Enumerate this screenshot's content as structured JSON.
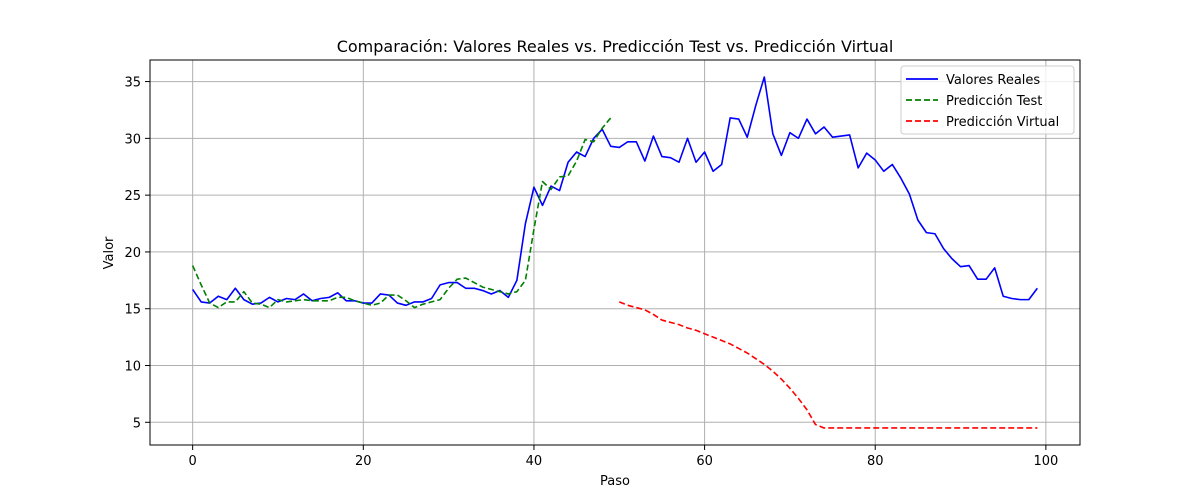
{
  "chart_data": {
    "type": "line",
    "title": "Comparación: Valores Reales vs. Predicción Test vs. Predicción Virtual",
    "xlabel": "Paso",
    "ylabel": "Valor",
    "xlim": [
      -5,
      104
    ],
    "ylim": [
      3.0,
      36.9
    ],
    "xticks": [
      0,
      20,
      40,
      60,
      80,
      100
    ],
    "yticks": [
      5,
      10,
      15,
      20,
      25,
      30,
      35
    ],
    "grid": true,
    "legend_position": "top-right",
    "series": [
      {
        "name": "Valores Reales",
        "color": "#0000ff",
        "style": "solid",
        "x_start": 0,
        "values": [
          16.7,
          15.6,
          15.5,
          16.1,
          15.8,
          16.8,
          15.8,
          15.4,
          15.5,
          16.0,
          15.6,
          15.9,
          15.8,
          16.3,
          15.7,
          15.9,
          16.0,
          16.4,
          15.7,
          15.7,
          15.5,
          15.5,
          16.3,
          16.2,
          15.5,
          15.3,
          15.6,
          15.6,
          15.9,
          17.1,
          17.3,
          17.3,
          16.8,
          16.8,
          16.6,
          16.3,
          16.6,
          16.0,
          17.5,
          22.5,
          25.7,
          24.1,
          25.8,
          25.4,
          27.9,
          28.8,
          28.4,
          30.0,
          30.8,
          29.3,
          29.2,
          29.7,
          29.7,
          28.0,
          30.2,
          28.4,
          28.3,
          27.9,
          30.0,
          27.9,
          28.8,
          27.1,
          27.7,
          31.8,
          31.7,
          30.1,
          32.9,
          35.4,
          30.4,
          28.5,
          30.5,
          30.0,
          31.7,
          30.4,
          31.0,
          30.1,
          30.2,
          30.3,
          27.4,
          28.7,
          28.1,
          27.1,
          27.7,
          26.5,
          25.1,
          22.8,
          21.7,
          21.6,
          20.3,
          19.4,
          18.7,
          18.8,
          17.6,
          17.6,
          18.6,
          16.1,
          15.9,
          15.8,
          15.8,
          16.8
        ]
      },
      {
        "name": "Predicción Test",
        "color": "#008000",
        "style": "dashed",
        "x_start": 0,
        "values": [
          18.8,
          17.1,
          15.5,
          15.1,
          15.6,
          15.6,
          16.5,
          15.5,
          15.4,
          15.1,
          15.8,
          15.6,
          15.7,
          15.8,
          15.7,
          15.7,
          15.7,
          16.0,
          16.0,
          15.7,
          15.5,
          15.3,
          15.5,
          16.2,
          16.2,
          15.7,
          15.1,
          15.4,
          15.6,
          15.8,
          16.8,
          17.6,
          17.7,
          17.3,
          16.9,
          16.7,
          16.5,
          16.3,
          16.5,
          17.5,
          22.0,
          26.2,
          25.5,
          26.6,
          26.7,
          28.0,
          29.9,
          29.7,
          30.9,
          31.8
        ]
      },
      {
        "name": "Predicción Virtual",
        "color": "#ff0000",
        "style": "dashed",
        "x_start": 50,
        "values": [
          15.6,
          15.3,
          15.1,
          14.9,
          14.5,
          14.0,
          13.8,
          13.6,
          13.3,
          13.1,
          12.8,
          12.5,
          12.2,
          11.9,
          11.5,
          11.1,
          10.6,
          10.1,
          9.5,
          8.8,
          8.0,
          7.1,
          6.1,
          4.8,
          4.5,
          4.5,
          4.5,
          4.5,
          4.5,
          4.5,
          4.5,
          4.5,
          4.5,
          4.5,
          4.5,
          4.5,
          4.5,
          4.5,
          4.5,
          4.5,
          4.5,
          4.5,
          4.5,
          4.5,
          4.5,
          4.5,
          4.5,
          4.5,
          4.5,
          4.5
        ]
      }
    ]
  }
}
